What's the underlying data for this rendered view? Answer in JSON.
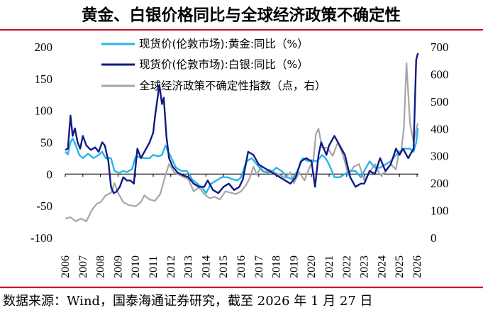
{
  "header": {
    "title": "黄金、白银价格同比与全球经济政策不确定性"
  },
  "footer": {
    "source": "数据来源：Wind，国泰海通证券研究，截至 2026 年 1 月 27 日"
  },
  "colors": {
    "gold": "#28b4e6",
    "silver": "#101a86",
    "epu": "#a6a6a6",
    "rule": "#c8102e"
  },
  "chart_data": {
    "type": "line",
    "title": "黄金、白银价格同比与全球经济政策不确定性",
    "x_ticks": [
      "2006",
      "2007",
      "2008",
      "2009",
      "2010",
      "2011",
      "2012",
      "2013",
      "2014",
      "2015",
      "2016",
      "2017",
      "2018",
      "2019",
      "2020",
      "2021",
      "2022",
      "2023",
      "2024",
      "2025",
      "2026"
    ],
    "x_range": [
      2006.0,
      2026.08
    ],
    "y_left": {
      "range": [
        -100,
        200
      ],
      "ticks": [
        -100,
        -50,
        0,
        50,
        100,
        150,
        200
      ]
    },
    "y_right": {
      "range": [
        0,
        700
      ],
      "ticks": [
        0,
        100,
        200,
        300,
        400,
        500,
        600,
        700
      ]
    },
    "series": [
      {
        "name": "现货价(伦敦市场):黄金:同比（%）",
        "axis": "left",
        "color": "#28b4e6",
        "x": [
          2006.0,
          2006.15,
          2006.3,
          2006.42,
          2006.6,
          2006.8,
          2007.0,
          2007.3,
          2007.6,
          2007.9,
          2008.1,
          2008.3,
          2008.6,
          2008.8,
          2008.95,
          2009.1,
          2009.3,
          2009.5,
          2009.8,
          2010.0,
          2010.2,
          2010.5,
          2010.8,
          2011.0,
          2011.3,
          2011.5,
          2011.7,
          2011.85,
          2012.0,
          2012.3,
          2012.6,
          2012.9,
          2013.0,
          2013.2,
          2013.5,
          2013.8,
          2014.0,
          2014.3,
          2014.6,
          2014.9,
          2015.2,
          2015.5,
          2015.8,
          2016.0,
          2016.3,
          2016.6,
          2016.9,
          2017.2,
          2017.5,
          2017.8,
          2018.0,
          2018.3,
          2018.6,
          2018.9,
          2019.2,
          2019.5,
          2019.8,
          2020.0,
          2020.3,
          2020.6,
          2020.8,
          2021.0,
          2021.3,
          2021.6,
          2021.9,
          2022.2,
          2022.5,
          2022.8,
          2023.0,
          2023.3,
          2023.6,
          2023.9,
          2024.2,
          2024.5,
          2024.8,
          2025.0,
          2025.3,
          2025.6,
          2025.8,
          2025.95,
          2026.05
        ],
        "values": [
          35,
          31,
          50,
          56,
          45,
          30,
          25,
          32,
          25,
          30,
          35,
          25,
          25,
          5,
          3,
          2,
          5,
          3,
          8,
          27,
          27,
          25,
          25,
          30,
          28,
          30,
          45,
          35,
          27,
          10,
          5,
          5,
          2,
          -8,
          -15,
          -22,
          -30,
          -15,
          -10,
          -5,
          -5,
          -8,
          -10,
          -5,
          20,
          25,
          15,
          5,
          2,
          5,
          10,
          5,
          -5,
          -8,
          5,
          25,
          20,
          22,
          20,
          30,
          25,
          15,
          -5,
          -5,
          0,
          5,
          5,
          -5,
          5,
          20,
          10,
          10,
          15,
          20,
          30,
          35,
          40,
          40,
          35,
          50,
          72
        ]
      },
      {
        "name": "现货价(伦敦市场):白银:同比（%）",
        "axis": "left",
        "color": "#101a86",
        "x": [
          2006.0,
          2006.15,
          2006.3,
          2006.42,
          2006.55,
          2006.7,
          2006.85,
          2007.0,
          2007.2,
          2007.45,
          2007.7,
          2007.9,
          2008.1,
          2008.25,
          2008.45,
          2008.6,
          2008.75,
          2008.9,
          2009.1,
          2009.3,
          2009.5,
          2009.7,
          2009.9,
          2010.1,
          2010.3,
          2010.5,
          2010.8,
          2011.0,
          2011.1,
          2011.25,
          2011.35,
          2011.5,
          2011.6,
          2011.75,
          2011.9,
          2012.1,
          2012.4,
          2012.7,
          2013.0,
          2013.3,
          2013.6,
          2013.9,
          2014.1,
          2014.4,
          2014.7,
          2015.0,
          2015.3,
          2015.6,
          2015.9,
          2016.1,
          2016.4,
          2016.7,
          2017.0,
          2017.3,
          2017.6,
          2017.9,
          2018.2,
          2018.5,
          2018.8,
          2019.1,
          2019.4,
          2019.7,
          2020.0,
          2020.2,
          2020.4,
          2020.55,
          2020.7,
          2020.85,
          2021.0,
          2021.3,
          2021.6,
          2021.9,
          2022.2,
          2022.5,
          2022.8,
          2023.0,
          2023.3,
          2023.6,
          2023.9,
          2024.2,
          2024.5,
          2024.8,
          2025.0,
          2025.2,
          2025.5,
          2025.8,
          2025.95,
          2026.05
        ],
        "values": [
          38,
          40,
          92,
          60,
          72,
          50,
          40,
          60,
          45,
          38,
          42,
          35,
          50,
          45,
          20,
          -20,
          -30,
          -28,
          -20,
          -5,
          -10,
          -10,
          -15,
          40,
          25,
          35,
          50,
          65,
          90,
          120,
          140,
          110,
          120,
          60,
          25,
          12,
          2,
          -2,
          -5,
          -15,
          -20,
          -20,
          -10,
          -25,
          -30,
          -20,
          -15,
          -25,
          -20,
          -8,
          35,
          30,
          15,
          10,
          5,
          0,
          -5,
          -10,
          -15,
          -5,
          20,
          25,
          20,
          -20,
          30,
          50,
          40,
          30,
          45,
          60,
          45,
          30,
          -5,
          -20,
          -15,
          -15,
          5,
          0,
          25,
          5,
          15,
          40,
          30,
          40,
          25,
          40,
          180,
          190
        ]
      },
      {
        "name": "全球经济政策不确定性指数（点，右）",
        "axis": "right",
        "color": "#a6a6a6",
        "x": [
          2006.0,
          2006.3,
          2006.6,
          2006.9,
          2007.2,
          2007.5,
          2007.8,
          2008.0,
          2008.3,
          2008.6,
          2008.8,
          2009.0,
          2009.3,
          2009.6,
          2010.0,
          2010.3,
          2010.5,
          2010.8,
          2011.1,
          2011.4,
          2011.7,
          2011.9,
          2012.2,
          2012.5,
          2012.8,
          2013.0,
          2013.3,
          2013.6,
          2013.9,
          2014.2,
          2014.5,
          2014.8,
          2015.1,
          2015.4,
          2015.7,
          2016.0,
          2016.3,
          2016.5,
          2016.7,
          2016.9,
          2017.1,
          2017.3,
          2017.6,
          2017.9,
          2018.2,
          2018.5,
          2018.8,
          2019.0,
          2019.3,
          2019.6,
          2019.9,
          2020.1,
          2020.25,
          2020.4,
          2020.6,
          2020.9,
          2021.2,
          2021.5,
          2021.8,
          2022.1,
          2022.4,
          2022.7,
          2023.0,
          2023.3,
          2023.6,
          2023.9,
          2024.2,
          2024.5,
          2024.8,
          2024.95,
          2025.1,
          2025.25,
          2025.4,
          2025.6,
          2025.8,
          2026.0,
          2026.05
        ],
        "values": [
          70,
          75,
          60,
          70,
          60,
          100,
          125,
          130,
          155,
          165,
          200,
          165,
          130,
          120,
          115,
          130,
          155,
          140,
          135,
          160,
          230,
          270,
          240,
          230,
          220,
          215,
          170,
          185,
          160,
          145,
          150,
          140,
          170,
          165,
          160,
          170,
          195,
          220,
          260,
          230,
          260,
          240,
          250,
          240,
          230,
          220,
          240,
          200,
          240,
          210,
          260,
          280,
          380,
          400,
          330,
          330,
          300,
          350,
          300,
          230,
          260,
          270,
          210,
          240,
          270,
          230,
          240,
          270,
          250,
          310,
          320,
          400,
          640,
          420,
          350,
          410,
          420
        ]
      }
    ]
  }
}
